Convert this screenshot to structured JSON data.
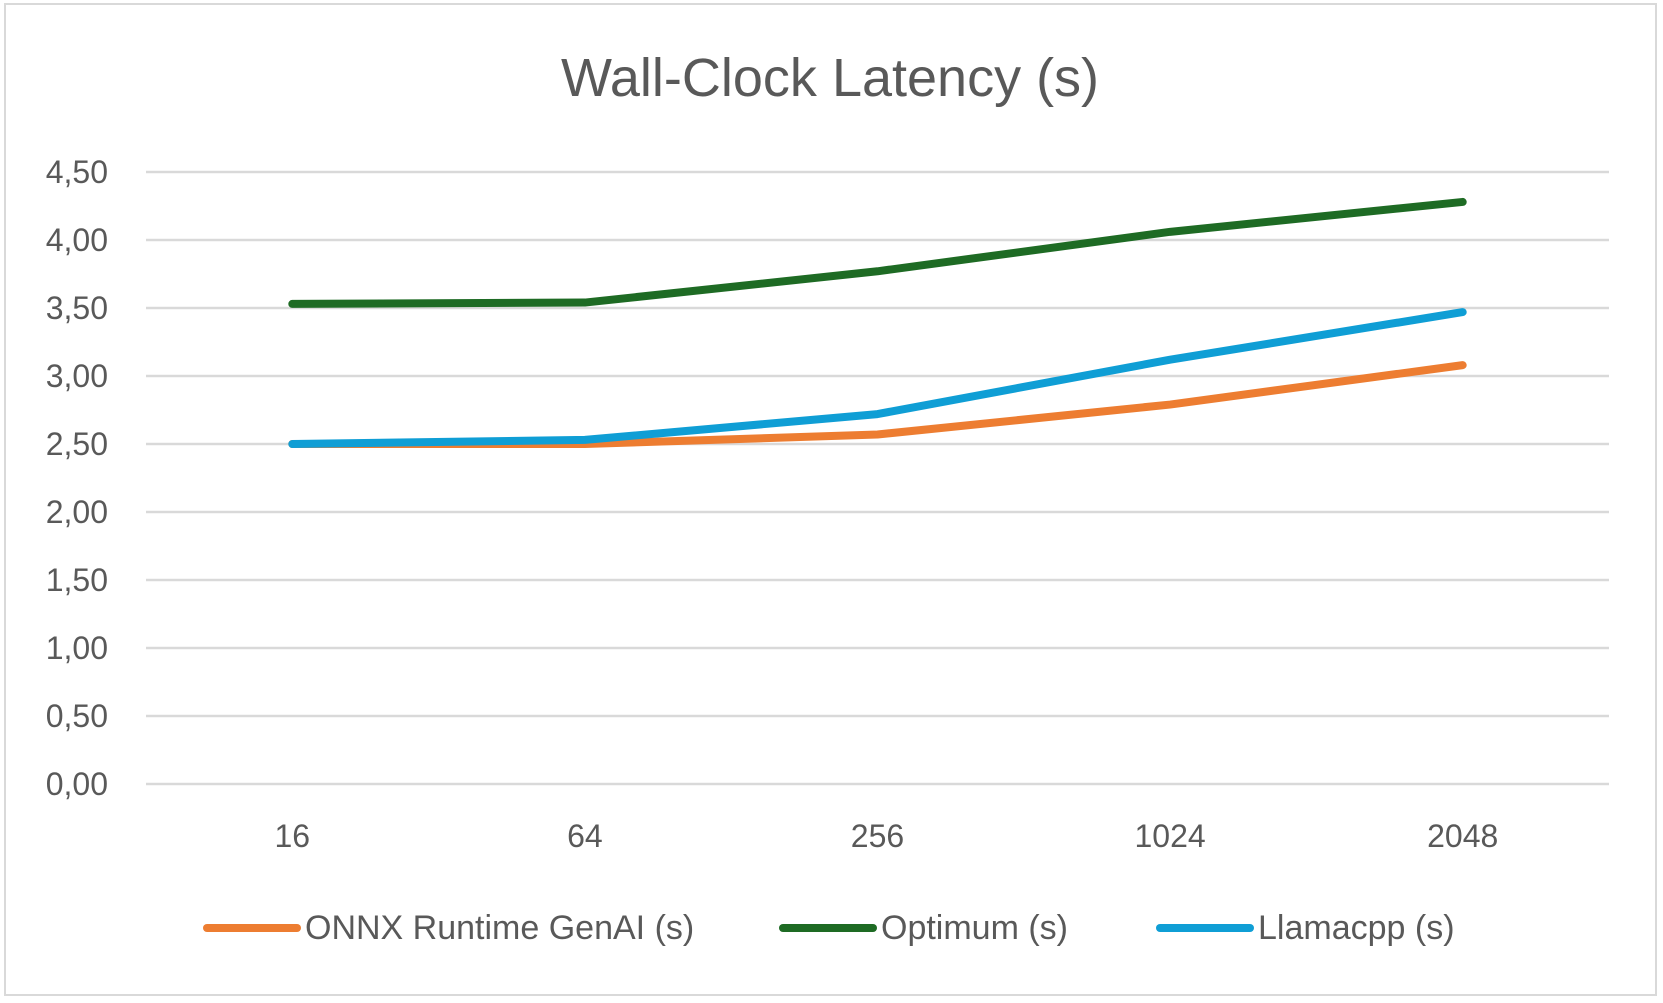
{
  "chart_data": {
    "type": "line",
    "title": "Wall-Clock Latency (s)",
    "xlabel": "",
    "ylabel": "",
    "categories": [
      "16",
      "64",
      "256",
      "1024",
      "2048"
    ],
    "ylim": [
      0,
      4.5
    ],
    "yticks": [
      "0,00",
      "0,50",
      "1,00",
      "1,50",
      "2,00",
      "2,50",
      "3,00",
      "3,50",
      "4,00",
      "4,50"
    ],
    "grid": true,
    "legend_position": "bottom",
    "series": [
      {
        "name": "ONNX Runtime GenAI (s)",
        "color": "#ED7D31",
        "values": [
          2.5,
          2.5,
          2.57,
          2.79,
          3.08
        ]
      },
      {
        "name": "Optimum (s)",
        "color": "#1E6B24",
        "values": [
          3.53,
          3.54,
          3.77,
          4.06,
          4.28
        ]
      },
      {
        "name": "Llamacpp (s)",
        "color": "#0F9ED5",
        "values": [
          2.5,
          2.53,
          2.72,
          3.12,
          3.47
        ]
      }
    ]
  }
}
